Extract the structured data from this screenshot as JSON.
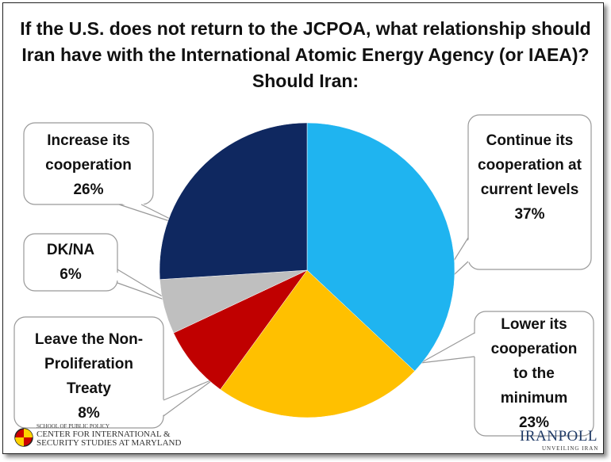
{
  "chart_data": {
    "type": "pie",
    "title": "If the U.S. does not return to the JCPOA, what relationship should Iran have with the International Atomic Energy Agency (or IAEA)?  Should Iran:",
    "categories": [
      "Continue its cooperation at current levels",
      "Lower its cooperation to the minimum",
      "Leave the Non-Proliferation Treaty",
      "DK/NA",
      "Increase its cooperation"
    ],
    "values": [
      37,
      23,
      8,
      6,
      26
    ],
    "value_labels": [
      "37%",
      "23%",
      "8%",
      "6%",
      "26%"
    ],
    "colors": [
      "#1fb4f0",
      "#ffc000",
      "#c00000",
      "#bfbfbf",
      "#0f2860"
    ]
  },
  "logos": {
    "school": "SCHOOL OF PUBLIC POLICY",
    "center": "CENTER FOR INTERNATIONAL &",
    "center2": "SECURITY STUDIES AT MARYLAND",
    "iranpoll": "IRANPOLL",
    "tagline": "UNVEILING IRAN"
  }
}
